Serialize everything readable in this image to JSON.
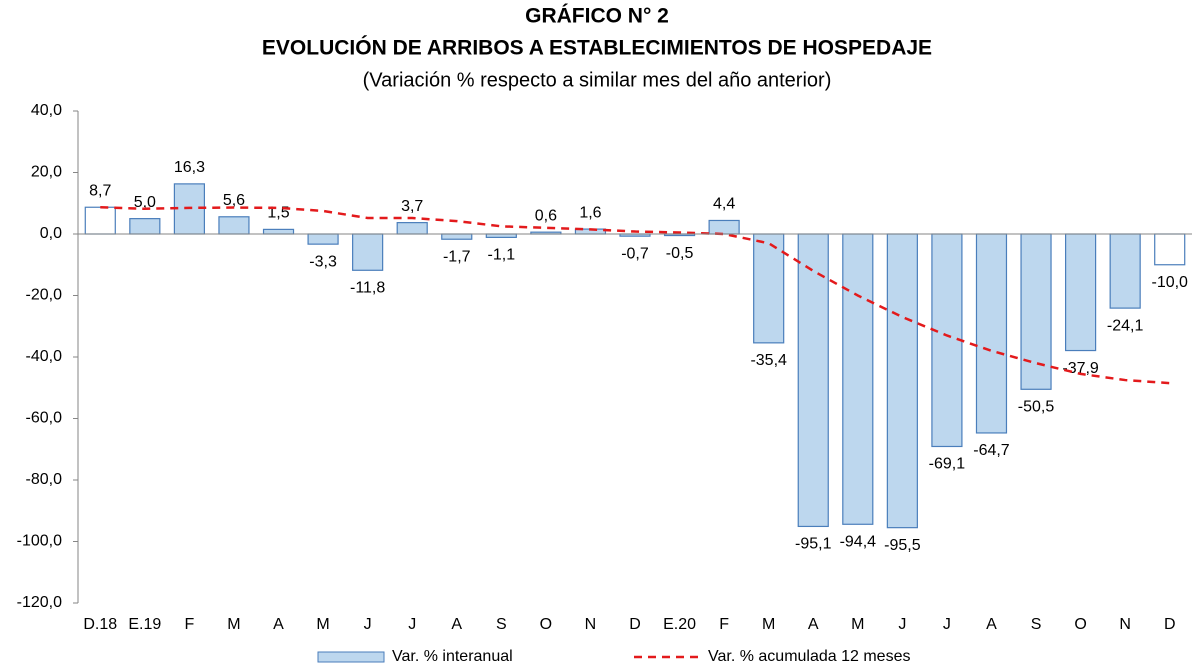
{
  "chart_data": {
    "type": "bar",
    "title": "GRÁFICO N° 2",
    "subtitle": "EVOLUCIÓN DE ARRIBOS A ESTABLECIMIENTOS DE HOSPEDAJE",
    "note": "(Variación % respecto a similar mes del año anterior)",
    "categories": [
      "D.18",
      "E.19",
      "F",
      "M",
      "A",
      "M",
      "J",
      "J",
      "A",
      "S",
      "O",
      "N",
      "D",
      "E.20",
      "F",
      "M",
      "A",
      "M",
      "J",
      "J",
      "A",
      "S",
      "O",
      "N",
      "D"
    ],
    "series": [
      {
        "name": "Var. % interanual",
        "type": "bar",
        "color": "#bdd7ee",
        "stroke": "#4a7ebb",
        "fill_colors": [
          "#ffffff",
          "#bdd7ee",
          "#bdd7ee",
          "#bdd7ee",
          "#bdd7ee",
          "#bdd7ee",
          "#bdd7ee",
          "#bdd7ee",
          "#bdd7ee",
          "#bdd7ee",
          "#bdd7ee",
          "#bdd7ee",
          "#bdd7ee",
          "#bdd7ee",
          "#bdd7ee",
          "#bdd7ee",
          "#bdd7ee",
          "#bdd7ee",
          "#bdd7ee",
          "#bdd7ee",
          "#bdd7ee",
          "#bdd7ee",
          "#bdd7ee",
          "#bdd7ee",
          "#ffffff"
        ],
        "values": [
          8.7,
          5.0,
          16.3,
          5.6,
          1.5,
          -3.3,
          -11.8,
          3.7,
          -1.7,
          -1.1,
          0.6,
          1.6,
          -0.7,
          -0.5,
          4.4,
          -35.4,
          -95.1,
          -94.4,
          -95.5,
          -69.1,
          -64.7,
          -50.5,
          -37.9,
          -24.1,
          -10.0
        ],
        "value_labels": [
          "8,7",
          "5,0",
          "16,3",
          "5,6",
          "1,5",
          "-3,3",
          "-11,8",
          "3,7",
          "-1,7",
          "-1,1",
          "0,6",
          "1,6",
          "-0,7",
          "-0,5",
          "4,4",
          "-35,4",
          "-95,1",
          "-94,4",
          "-95,5",
          "-69,1",
          "-64,7",
          "-50,5",
          "-37,9",
          "-24,1",
          "-10,0"
        ]
      },
      {
        "name": "Var. % acumulada 12 meses",
        "type": "line",
        "color": "#e31a1c",
        "dashed": true,
        "values": [
          8.7,
          8.2,
          8.5,
          8.6,
          8.5,
          7.5,
          5.2,
          5.2,
          4.2,
          2.5,
          2.0,
          1.5,
          0.8,
          0.5,
          0.0,
          -3.0,
          -12.0,
          -20.0,
          -27.0,
          -33.0,
          -38.0,
          -42.0,
          -45.5,
          -47.5,
          -48.5
        ]
      }
    ],
    "ylim": [
      -120,
      40
    ],
    "yticks": [
      {
        "value": -120,
        "label": "-120,0"
      },
      {
        "value": -100,
        "label": "-100,0"
      },
      {
        "value": -80,
        "label": "-80,0"
      },
      {
        "value": -60,
        "label": "-60,0"
      },
      {
        "value": -40,
        "label": "-40,0"
      },
      {
        "value": -20,
        "label": "-20,0"
      },
      {
        "value": 0,
        "label": "0,0"
      },
      {
        "value": 20,
        "label": "20,0"
      },
      {
        "value": 40,
        "label": "40,0"
      }
    ],
    "grid": false
  }
}
